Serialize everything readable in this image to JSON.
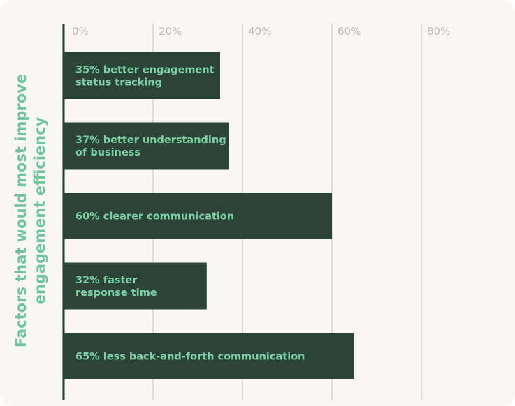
{
  "chart_data": {
    "type": "bar",
    "orientation": "horizontal",
    "ylabel": "Factors that would most improve engagement efficiency",
    "xlabel": "",
    "title": "",
    "x_ticks": [
      "0%",
      "20%",
      "40%",
      "60%",
      "80%"
    ],
    "x_tick_values": [
      0,
      20,
      40,
      60,
      80
    ],
    "xlim": [
      0,
      80
    ],
    "grid": true,
    "categories": [
      [
        "35% better engagement",
        "status tracking"
      ],
      [
        "37% better understanding",
        "of business"
      ],
      [
        "60% clearer communication"
      ],
      [
        "32% faster",
        "response time"
      ],
      [
        "65% less back-and-forth communication"
      ]
    ],
    "values": [
      35,
      37,
      60,
      32,
      65
    ]
  },
  "colors": {
    "background": "#f9f7f3",
    "bar": "#2c4437",
    "bar_label": "#7dd0a6",
    "axis_label": "#6ec59b",
    "tick_label": "#bdbdb6",
    "grid": "#d5d3cd",
    "axis": "#1f3a2c"
  }
}
